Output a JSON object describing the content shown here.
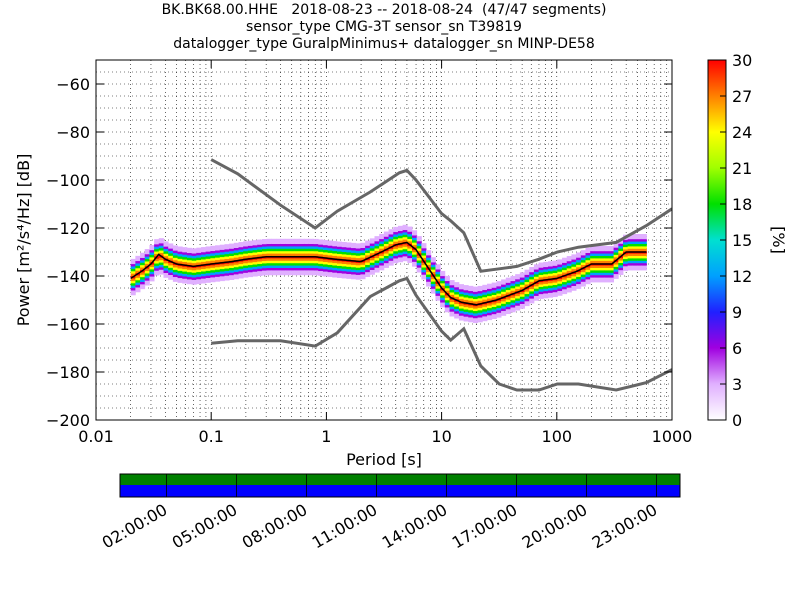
{
  "title_lines": [
    "BK.BK68.00.HHE   2018-08-23 -- 2018-08-24  (47/47 segments)",
    "sensor_type CMG-3T sensor_sn T39819",
    "datalogger_type GuralpMinimus+ datalogger_sn MINP-DE58"
  ],
  "chart_data": {
    "type": "heatmap",
    "xlabel": "Period [s]",
    "ylabel": "Power [m²/s⁴/Hz] [dB]",
    "xscale": "log",
    "xlim": [
      0.01,
      1000
    ],
    "ylim": [
      -200,
      -50
    ],
    "x_tick_labels": [
      "0.01",
      "0.1",
      "1",
      "10",
      "100",
      "1000"
    ],
    "x_tick_values": [
      0.01,
      0.1,
      1,
      10,
      100,
      1000
    ],
    "y_tick_labels": [
      "−60",
      "−80",
      "−100",
      "−120",
      "−140",
      "−160",
      "−180",
      "−200"
    ],
    "y_tick_values": [
      -60,
      -80,
      -100,
      -120,
      -140,
      -160,
      -180,
      -200
    ],
    "grid": true,
    "colorbar": {
      "label": "[%]",
      "range": [
        0,
        30
      ],
      "tick_labels": [
        "0",
        "3",
        "6",
        "9",
        "12",
        "15",
        "18",
        "21",
        "24",
        "27",
        "30"
      ],
      "tick_values": [
        0,
        3,
        6,
        9,
        12,
        15,
        18,
        21,
        24,
        27,
        30
      ],
      "colors": [
        "#ffffff",
        "#e0b0ff",
        "#a000e0",
        "#2020ff",
        "#00a0ff",
        "#00e0d0",
        "#00e000",
        "#a0ff00",
        "#ffff00",
        "#ff8000",
        "#ff0000"
      ]
    },
    "nhnm": [
      [
        0.1,
        -91.5
      ],
      [
        0.17,
        -97.4
      ],
      [
        0.4,
        -110.5
      ],
      [
        0.8,
        -120
      ],
      [
        1.24,
        -113
      ],
      [
        2.4,
        -105
      ],
      [
        4.3,
        -97
      ],
      [
        5,
        -96
      ],
      [
        6,
        -100
      ],
      [
        10,
        -114
      ],
      [
        12,
        -117
      ],
      [
        15.6,
        -122
      ],
      [
        21.9,
        -138
      ],
      [
        31.6,
        -137
      ],
      [
        45,
        -136
      ],
      [
        70,
        -133
      ],
      [
        101,
        -130
      ],
      [
        154,
        -128
      ],
      [
        328,
        -126
      ],
      [
        600,
        -119
      ],
      [
        1000,
        -112
      ]
    ],
    "nlnm": [
      [
        0.1,
        -168
      ],
      [
        0.17,
        -167
      ],
      [
        0.4,
        -167
      ],
      [
        0.8,
        -169.2
      ],
      [
        1.24,
        -163.7
      ],
      [
        2.4,
        -148.6
      ],
      [
        4.3,
        -142
      ],
      [
        5,
        -141
      ],
      [
        6,
        -148
      ],
      [
        10,
        -163
      ],
      [
        12,
        -166.7
      ],
      [
        15.6,
        -162
      ],
      [
        21.9,
        -177.5
      ],
      [
        31.6,
        -185
      ],
      [
        45,
        -187.5
      ],
      [
        70,
        -187.5
      ],
      [
        101,
        -185
      ],
      [
        154,
        -185
      ],
      [
        328,
        -187.5
      ],
      [
        600,
        -184.4
      ],
      [
        1000,
        -179
      ]
    ],
    "mode": [
      [
        0.02,
        -141
      ],
      [
        0.025,
        -138
      ],
      [
        0.03,
        -135
      ],
      [
        0.035,
        -131
      ],
      [
        0.04,
        -133
      ],
      [
        0.05,
        -135
      ],
      [
        0.07,
        -136
      ],
      [
        0.1,
        -135
      ],
      [
        0.15,
        -134
      ],
      [
        0.2,
        -133
      ],
      [
        0.3,
        -132
      ],
      [
        0.5,
        -132
      ],
      [
        0.8,
        -132
      ],
      [
        1.2,
        -133
      ],
      [
        2,
        -134
      ],
      [
        3,
        -130
      ],
      [
        4,
        -127
      ],
      [
        5,
        -126
      ],
      [
        6,
        -129
      ],
      [
        8,
        -138
      ],
      [
        10,
        -145
      ],
      [
        12,
        -149
      ],
      [
        15,
        -151
      ],
      [
        20,
        -152
      ],
      [
        30,
        -150
      ],
      [
        50,
        -146
      ],
      [
        70,
        -142
      ],
      [
        100,
        -141
      ],
      [
        150,
        -138
      ],
      [
        200,
        -135
      ],
      [
        300,
        -135
      ],
      [
        400,
        -130
      ],
      [
        600,
        -130
      ]
    ],
    "timeline": {
      "tick_labels": [
        "02:00:00",
        "05:00:00",
        "08:00:00",
        "11:00:00",
        "14:00:00",
        "17:00:00",
        "20:00:00",
        "23:00:00"
      ],
      "bars": [
        {
          "color": "#008000"
        },
        {
          "color": "#0000ff"
        }
      ]
    }
  }
}
